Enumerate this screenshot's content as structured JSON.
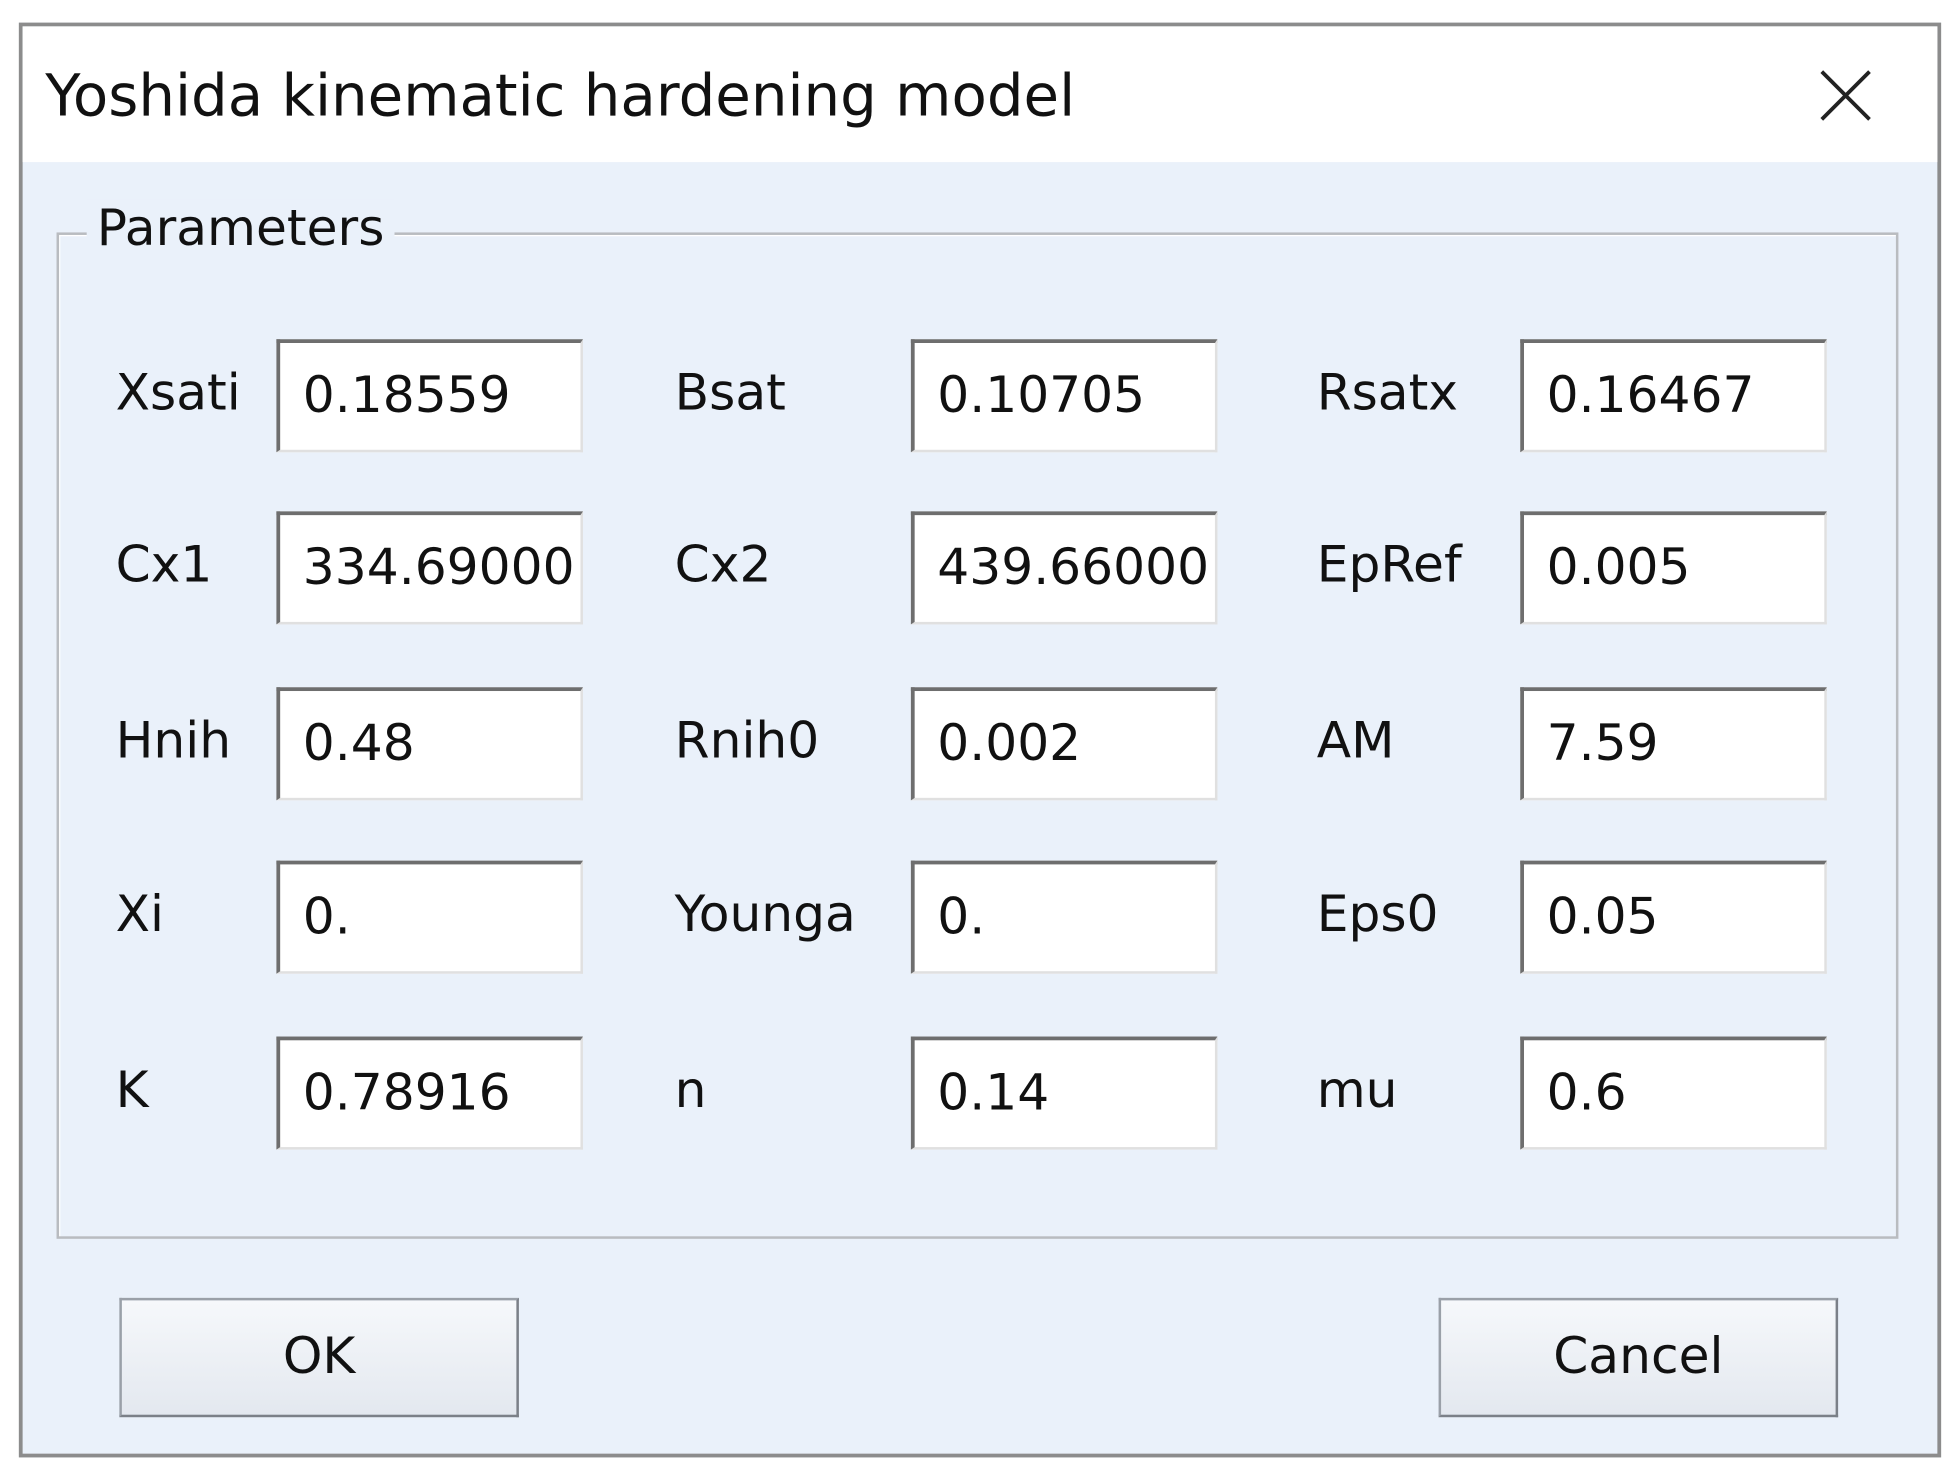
{
  "title": "Yoshida kinematic hardening model",
  "group_label": "Parameters",
  "fields": [
    {
      "label": "Xsati",
      "value": "0.18559"
    },
    {
      "label": "Bsat",
      "value": "0.10705"
    },
    {
      "label": "Rsatx",
      "value": "0.16467"
    },
    {
      "label": "Cx1",
      "value": "334.69000"
    },
    {
      "label": "Cx2",
      "value": "439.66000"
    },
    {
      "label": "EpRef",
      "value": "0.005"
    },
    {
      "label": "Hnih",
      "value": "0.48"
    },
    {
      "label": "Rnih0",
      "value": "0.002"
    },
    {
      "label": "AM",
      "value": "7.59"
    },
    {
      "label": "Xi",
      "value": "0."
    },
    {
      "label": "Younga",
      "value": "0."
    },
    {
      "label": "Eps0",
      "value": "0.05"
    },
    {
      "label": "K",
      "value": "0.78916"
    },
    {
      "label": "n",
      "value": "0.14"
    },
    {
      "label": "mu",
      "value": "0.6"
    }
  ],
  "buttons": {
    "ok": "OK",
    "cancel": "Cancel"
  }
}
